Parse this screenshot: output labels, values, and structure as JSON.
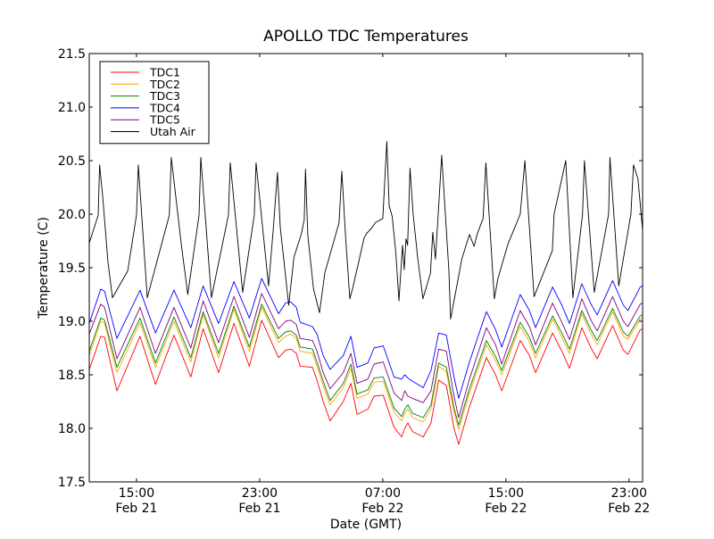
{
  "chart_data": {
    "type": "line",
    "title": "APOLLO TDC Temperatures",
    "xlabel": "Date (GMT)",
    "ylabel": "Temperature (C)",
    "x_unit": "hours since Feb 21 11:56 GMT",
    "xlim": [
      0,
      35.95
    ],
    "ylim": [
      17.5,
      21.5
    ],
    "grid": false,
    "legend_position": "top-left",
    "yticks": [
      {
        "value": 17.5,
        "label": "17.5"
      },
      {
        "value": 18.0,
        "label": "18.0"
      },
      {
        "value": 18.5,
        "label": "18.5"
      },
      {
        "value": 19.0,
        "label": "19.0"
      },
      {
        "value": 19.5,
        "label": "19.5"
      },
      {
        "value": 20.0,
        "label": "20.0"
      },
      {
        "value": 20.5,
        "label": "20.5"
      },
      {
        "value": 21.0,
        "label": "21.0"
      },
      {
        "value": 21.5,
        "label": "21.5"
      }
    ],
    "xticks": [
      {
        "value": 3.07,
        "time": "15:00",
        "date": "Feb 21"
      },
      {
        "value": 11.07,
        "time": "23:00",
        "date": "Feb 21"
      },
      {
        "value": 19.07,
        "time": "07:00",
        "date": "Feb 22"
      },
      {
        "value": 27.07,
        "time": "15:00",
        "date": "Feb 22"
      },
      {
        "value": 35.07,
        "time": "23:00",
        "date": "Feb 22"
      }
    ],
    "series": [
      {
        "name": "TDC1",
        "color": "#ff0000",
        "x": [
          0,
          0.75,
          1.0,
          1.8,
          3.3,
          4.3,
          5.5,
          6.6,
          7.4,
          8.4,
          9.4,
          10.4,
          11.2,
          12.3,
          12.75,
          13.1,
          13.45,
          13.7,
          14.5,
          14.8,
          15.2,
          15.65,
          16.5,
          17.0,
          17.4,
          18.1,
          18.5,
          19.1,
          19.8,
          20.3,
          20.5,
          20.7,
          21.0,
          21.7,
          22.2,
          22.7,
          23.2,
          23.7,
          24.0,
          24.7,
          25.8,
          26.4,
          26.8,
          28.0,
          28.6,
          29.0,
          30.1,
          30.7,
          31.2,
          32.0,
          32.6,
          33.0,
          34.0,
          34.7,
          35.0,
          35.8,
          35.95
        ],
        "y": [
          18.55,
          18.86,
          18.85,
          18.35,
          18.86,
          18.41,
          18.87,
          18.48,
          18.93,
          18.52,
          18.98,
          18.58,
          19.01,
          18.66,
          18.73,
          18.74,
          18.7,
          18.58,
          18.57,
          18.45,
          18.25,
          18.07,
          18.25,
          18.42,
          18.13,
          18.18,
          18.3,
          18.31,
          18.01,
          17.92,
          18.0,
          18.05,
          17.97,
          17.92,
          18.05,
          18.45,
          18.4,
          18.0,
          17.85,
          18.2,
          18.66,
          18.5,
          18.35,
          18.82,
          18.68,
          18.52,
          18.89,
          18.72,
          18.56,
          18.94,
          18.75,
          18.65,
          18.96,
          18.73,
          18.69,
          18.92,
          18.93
        ]
      },
      {
        "name": "TDC2",
        "color": "#ffa500",
        "x": [
          0,
          0.75,
          1.0,
          1.8,
          3.3,
          4.3,
          5.5,
          6.6,
          7.4,
          8.4,
          9.4,
          10.4,
          11.2,
          12.3,
          12.75,
          13.1,
          13.45,
          13.7,
          14.5,
          14.8,
          15.2,
          15.65,
          16.5,
          17.0,
          17.4,
          18.1,
          18.5,
          19.1,
          19.8,
          20.3,
          20.5,
          20.7,
          21.0,
          21.7,
          22.2,
          22.7,
          23.2,
          23.7,
          24.0,
          24.7,
          25.8,
          26.4,
          26.8,
          28.0,
          28.6,
          29.0,
          30.1,
          30.7,
          31.2,
          32.0,
          32.6,
          33.0,
          34.0,
          34.7,
          35.0,
          35.8,
          35.95
        ],
        "y": [
          18.68,
          19.0,
          18.98,
          18.52,
          18.99,
          18.57,
          19.0,
          18.62,
          19.06,
          18.66,
          19.11,
          18.72,
          19.13,
          18.8,
          18.86,
          18.88,
          18.84,
          18.72,
          18.7,
          18.58,
          18.4,
          18.22,
          18.38,
          18.56,
          18.28,
          18.32,
          18.43,
          18.44,
          18.15,
          18.07,
          18.14,
          18.18,
          18.1,
          18.06,
          18.18,
          18.58,
          18.53,
          18.15,
          17.99,
          18.33,
          18.78,
          18.63,
          18.5,
          18.95,
          18.81,
          18.66,
          19.02,
          18.85,
          18.7,
          19.07,
          18.88,
          18.78,
          19.09,
          18.86,
          18.83,
          19.02,
          19.03
        ]
      },
      {
        "name": "TDC3",
        "color": "#008000",
        "x": [
          0,
          0.75,
          1.0,
          1.8,
          3.3,
          4.3,
          5.5,
          6.6,
          7.4,
          8.4,
          9.4,
          10.4,
          11.2,
          12.3,
          12.75,
          13.1,
          13.45,
          13.7,
          14.5,
          14.8,
          15.2,
          15.65,
          16.5,
          17.0,
          17.4,
          18.1,
          18.5,
          19.1,
          19.8,
          20.3,
          20.5,
          20.7,
          21.0,
          21.7,
          22.2,
          22.7,
          23.2,
          23.7,
          24.0,
          24.7,
          25.8,
          26.4,
          26.8,
          28.0,
          28.6,
          29.0,
          30.1,
          30.7,
          31.2,
          32.0,
          32.6,
          33.0,
          34.0,
          34.7,
          35.0,
          35.8,
          35.95
        ],
        "y": [
          18.72,
          19.03,
          19.01,
          18.57,
          19.03,
          18.61,
          19.04,
          18.66,
          19.09,
          18.7,
          19.14,
          18.76,
          19.16,
          18.84,
          18.9,
          18.91,
          18.87,
          18.76,
          18.74,
          18.62,
          18.44,
          18.26,
          18.42,
          18.6,
          18.32,
          18.36,
          18.47,
          18.48,
          18.19,
          18.11,
          18.18,
          18.22,
          18.14,
          18.1,
          18.22,
          18.61,
          18.57,
          18.19,
          18.03,
          18.37,
          18.82,
          18.67,
          18.54,
          18.99,
          18.85,
          18.7,
          19.05,
          18.89,
          18.74,
          19.1,
          18.92,
          18.82,
          19.12,
          18.9,
          18.86,
          19.05,
          19.06
        ]
      },
      {
        "name": "TDC4",
        "color": "#0000ff",
        "x": [
          0,
          0.75,
          1.0,
          1.8,
          3.3,
          4.3,
          5.5,
          6.6,
          7.4,
          8.4,
          9.4,
          10.4,
          11.2,
          12.3,
          12.75,
          13.1,
          13.45,
          13.7,
          14.5,
          14.8,
          15.2,
          15.65,
          16.5,
          17.0,
          17.4,
          18.1,
          18.5,
          19.1,
          19.8,
          20.3,
          20.5,
          20.7,
          21.0,
          21.7,
          22.2,
          22.7,
          23.2,
          23.7,
          24.0,
          24.7,
          25.8,
          26.4,
          26.8,
          28.0,
          28.6,
          29.0,
          30.1,
          30.7,
          31.2,
          32.0,
          32.6,
          33.0,
          34.0,
          34.7,
          35.0,
          35.8,
          35.95
        ],
        "y": [
          18.98,
          19.3,
          19.28,
          18.84,
          19.29,
          18.89,
          19.29,
          18.94,
          19.33,
          18.98,
          19.37,
          19.03,
          19.4,
          19.07,
          19.17,
          19.18,
          19.13,
          18.99,
          18.95,
          18.88,
          18.68,
          18.55,
          18.68,
          18.86,
          18.57,
          18.61,
          18.75,
          18.77,
          18.48,
          18.46,
          18.5,
          18.47,
          18.44,
          18.38,
          18.54,
          18.89,
          18.87,
          18.48,
          18.28,
          18.62,
          19.09,
          18.92,
          18.76,
          19.25,
          19.1,
          18.94,
          19.32,
          19.15,
          18.98,
          19.35,
          19.16,
          19.06,
          19.38,
          19.15,
          19.1,
          19.32,
          19.33
        ]
      },
      {
        "name": "TDC5",
        "color": "#800080",
        "x": [
          0,
          0.75,
          1.0,
          1.8,
          3.3,
          4.3,
          5.5,
          6.6,
          7.4,
          8.4,
          9.4,
          10.4,
          11.2,
          12.3,
          12.75,
          13.1,
          13.45,
          13.7,
          14.5,
          14.8,
          15.2,
          15.65,
          16.5,
          17.0,
          17.4,
          18.1,
          18.5,
          19.1,
          19.8,
          20.3,
          20.5,
          20.7,
          21.0,
          21.7,
          22.2,
          22.7,
          23.2,
          23.7,
          24.0,
          24.7,
          25.8,
          26.4,
          26.8,
          28.0,
          28.6,
          29.0,
          30.1,
          30.7,
          31.2,
          32.0,
          32.6,
          33.0,
          34.0,
          34.7,
          35.0,
          35.8,
          35.95
        ],
        "y": [
          18.88,
          19.16,
          19.13,
          18.65,
          19.13,
          18.7,
          19.13,
          18.75,
          19.19,
          18.8,
          19.23,
          18.85,
          19.26,
          18.93,
          19.0,
          19.01,
          18.97,
          18.84,
          18.82,
          18.72,
          18.52,
          18.37,
          18.52,
          18.7,
          18.42,
          18.46,
          18.6,
          18.62,
          18.33,
          18.26,
          18.35,
          18.3,
          18.28,
          18.24,
          18.35,
          18.74,
          18.72,
          18.3,
          18.1,
          18.46,
          18.94,
          18.78,
          18.6,
          19.1,
          18.95,
          18.78,
          19.17,
          18.99,
          18.83,
          19.21,
          19.01,
          18.91,
          19.23,
          19.0,
          18.95,
          19.16,
          19.17
        ]
      },
      {
        "name": "Utah Air",
        "color": "#000000",
        "x": [
          0,
          0.58,
          0.67,
          0.87,
          1.22,
          1.51,
          2.5,
          3.07,
          3.19,
          3.77,
          5.2,
          5.33,
          5.98,
          6.4,
          7.13,
          7.25,
          7.94,
          9.04,
          9.16,
          9.97,
          10.72,
          10.84,
          11.65,
          11.94,
          12.23,
          12.41,
          12.96,
          13.3,
          13.79,
          13.97,
          14.05,
          14.2,
          14.57,
          14.96,
          15.3,
          16.23,
          16.41,
          16.67,
          16.93,
          17.1,
          17.5,
          17.86,
          18.03,
          18.4,
          18.58,
          19.07,
          19.33,
          19.48,
          19.68,
          19.91,
          20.12,
          20.35,
          20.46,
          20.58,
          20.68,
          20.84,
          21.04,
          21.33,
          21.68,
          22.17,
          22.32,
          22.49,
          22.67,
          22.9,
          23.36,
          23.48,
          23.71,
          24.0,
          24.2,
          24.7,
          25.0,
          25.22,
          25.59,
          25.77,
          26.32,
          26.55,
          27.2,
          28.0,
          28.3,
          28.9,
          30.09,
          30.2,
          30.96,
          31.42,
          32.05,
          32.17,
          32.81,
          33.74,
          33.83,
          34.4,
          35.19,
          35.36,
          35.65,
          35.95
        ],
        "y": [
          19.73,
          19.99,
          20.46,
          20.17,
          19.55,
          19.22,
          19.47,
          19.99,
          20.46,
          19.22,
          19.99,
          20.53,
          19.72,
          19.25,
          19.99,
          20.53,
          19.22,
          19.99,
          20.48,
          19.27,
          19.99,
          20.48,
          19.33,
          19.83,
          20.39,
          19.88,
          19.15,
          19.6,
          19.82,
          19.95,
          20.42,
          19.8,
          19.3,
          19.08,
          19.45,
          19.92,
          20.4,
          19.75,
          19.21,
          19.3,
          19.55,
          19.78,
          19.82,
          19.88,
          19.92,
          19.96,
          20.68,
          20.08,
          19.98,
          19.65,
          19.19,
          19.71,
          19.48,
          19.77,
          19.71,
          20.43,
          20.0,
          19.6,
          19.21,
          19.45,
          19.83,
          19.58,
          20.0,
          20.55,
          19.48,
          19.02,
          19.2,
          19.42,
          19.58,
          19.81,
          19.7,
          19.82,
          19.96,
          20.48,
          19.21,
          19.4,
          19.72,
          20.0,
          20.5,
          19.23,
          19.66,
          20.0,
          20.5,
          19.22,
          20.0,
          20.5,
          19.27,
          20.0,
          20.53,
          19.33,
          20.0,
          20.46,
          20.33,
          19.85
        ]
      }
    ]
  }
}
